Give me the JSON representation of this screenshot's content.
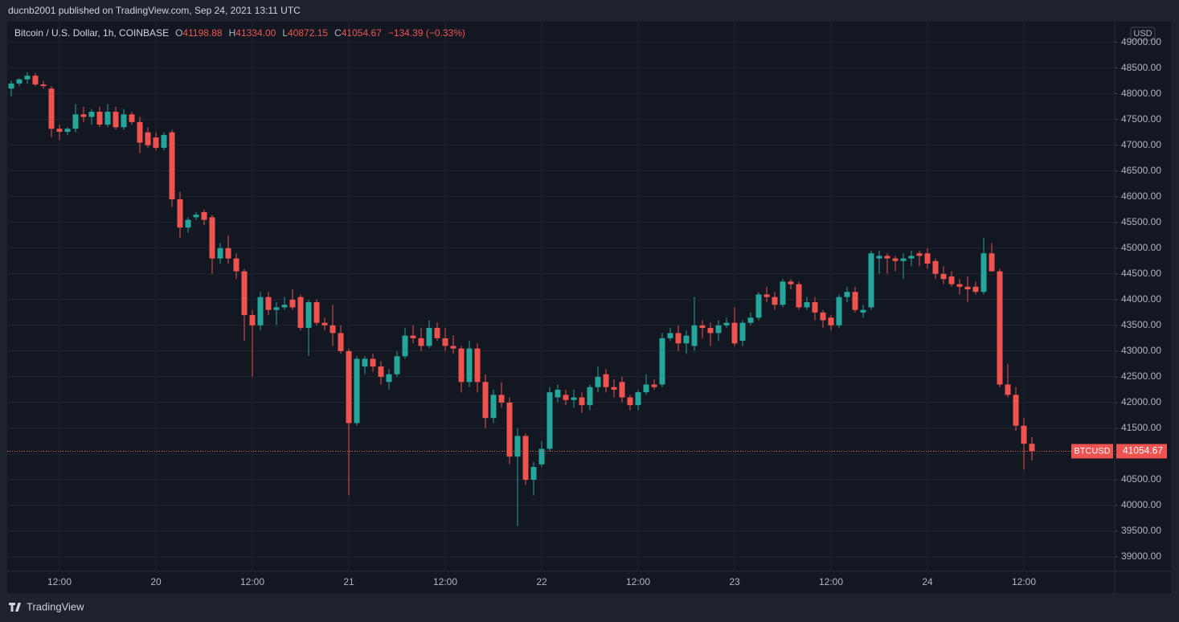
{
  "header": {
    "publisher": "ducnb2001 published on TradingView.com, Sep 24, 2021 13:11 UTC"
  },
  "footer": {
    "brand": "TradingView"
  },
  "chart_data": {
    "type": "candlestick",
    "legend": {
      "symbol": "Bitcoin / U.S. Dollar, 1h, COINBASE",
      "open_key": "O",
      "open": "41198.88",
      "high_key": "H",
      "high": "41334.00",
      "low_key": "L",
      "low": "40872.15",
      "close_key": "C",
      "close": "41054.67",
      "change": "−134.39 (−0.33%)"
    },
    "currency": "USD",
    "price_tag": "BTCUSD",
    "up_color": "#26a69a",
    "down_color": "#ef5350",
    "categories": [
      null,
      null,
      null,
      null,
      null,
      null,
      "12:00",
      null,
      null,
      null,
      null,
      null,
      null,
      null,
      null,
      null,
      null,
      null,
      "20",
      null,
      null,
      null,
      null,
      null,
      null,
      null,
      null,
      null,
      null,
      null,
      "12:00",
      null,
      null,
      null,
      null,
      null,
      null,
      null,
      null,
      null,
      null,
      null,
      "21",
      null,
      null,
      null,
      null,
      null,
      null,
      null,
      null,
      null,
      null,
      null,
      "12:00",
      null,
      null,
      null,
      null,
      null,
      null,
      null,
      null,
      null,
      null,
      null,
      "22",
      null,
      null,
      null,
      null,
      null,
      null,
      null,
      null,
      null,
      null,
      null,
      "12:00",
      null,
      null,
      null,
      null,
      null,
      null,
      null,
      null,
      null,
      null,
      null,
      "23",
      null,
      null,
      null,
      null,
      null,
      null,
      null,
      null,
      null,
      null,
      null,
      "12:00",
      null,
      null,
      null,
      null,
      null,
      null,
      null,
      null,
      null,
      null,
      null,
      "24",
      null,
      null,
      null,
      null,
      null,
      null,
      null,
      null,
      null,
      null,
      null,
      "12:00",
      null
    ],
    "open": [
      48100,
      48200,
      48280,
      48350,
      48180,
      48100,
      47320,
      47260,
      47320,
      47600,
      47550,
      47650,
      47400,
      47650,
      47350,
      47600,
      47450,
      47250,
      47150,
      46950,
      47250,
      45950,
      45400,
      45600,
      45700,
      45600,
      44800,
      45000,
      44800,
      44550,
      43700,
      43500,
      44050,
      43800,
      43850,
      44000,
      44050,
      43450,
      43950,
      43550,
      43500,
      43350,
      43000,
      41600,
      42700,
      42850,
      42700,
      42400,
      42550,
      42900,
      43300,
      43250,
      43100,
      43450,
      43250,
      43100,
      43050,
      42400,
      43050,
      42400,
      41700,
      42150,
      42000,
      40950,
      41350,
      40500,
      40800,
      41100,
      42100,
      42150,
      42050,
      42100,
      41950,
      42300,
      42550,
      42300,
      42400,
      42100,
      41950,
      42200,
      42350,
      42350,
      43250,
      43350,
      43150,
      43100,
      43500,
      43450,
      43350,
      43500,
      43550,
      43200,
      43550,
      43650,
      44100,
      44050,
      43900,
      44350,
      44300,
      43850,
      43950,
      43750,
      43650,
      43500,
      44050,
      44150,
      43750,
      43850,
      44800,
      44850,
      44800,
      44750,
      44800,
      44900,
      44900,
      44750,
      44500,
      44450,
      44300,
      44250,
      44250,
      44150,
      44900,
      44550,
      42350,
      42150,
      41550,
      41198.88
    ],
    "high": [
      48250,
      48300,
      48420,
      48400,
      48250,
      48150,
      47400,
      47350,
      47800,
      47750,
      47700,
      47750,
      47800,
      47750,
      47700,
      47650,
      47550,
      47350,
      47250,
      47250,
      47300,
      46100,
      45600,
      45700,
      45750,
      45650,
      45100,
      45250,
      44900,
      44600,
      43800,
      44150,
      44150,
      43950,
      44050,
      44200,
      44100,
      44000,
      44000,
      43650,
      43900,
      43500,
      43050,
      42900,
      42900,
      42950,
      42800,
      42650,
      43000,
      43450,
      43500,
      43450,
      43600,
      43550,
      43450,
      43300,
      43100,
      43200,
      43150,
      42550,
      42250,
      42400,
      42100,
      41500,
      41400,
      40850,
      41250,
      42300,
      42350,
      42250,
      42250,
      42200,
      42350,
      42700,
      42650,
      42450,
      42500,
      42150,
      42250,
      42550,
      42450,
      43350,
      43450,
      43500,
      43400,
      44050,
      43600,
      43550,
      43600,
      43650,
      43850,
      43600,
      43750,
      44150,
      44250,
      44150,
      44400,
      44400,
      44350,
      44050,
      44050,
      43800,
      43700,
      44100,
      44250,
      44250,
      43900,
      44950,
      44950,
      44900,
      44850,
      44900,
      44950,
      44950,
      45000,
      44800,
      44650,
      44550,
      44400,
      44450,
      44350,
      45200,
      45100,
      44600,
      42750,
      42300,
      41700,
      41334
    ],
    "low": [
      47950,
      48150,
      48200,
      48150,
      48100,
      47150,
      47100,
      47200,
      47250,
      47450,
      47400,
      47350,
      47350,
      47300,
      47300,
      47400,
      46850,
      46950,
      46900,
      46900,
      45800,
      45200,
      45300,
      45550,
      45450,
      44500,
      44700,
      44700,
      44400,
      43200,
      42500,
      43400,
      43700,
      43500,
      43800,
      43800,
      43400,
      42900,
      43500,
      43400,
      43100,
      42950,
      40200,
      41550,
      42550,
      42600,
      42350,
      42250,
      42500,
      42850,
      43150,
      43000,
      43050,
      43200,
      43000,
      42950,
      42200,
      42300,
      42200,
      41500,
      41600,
      41900,
      40800,
      39600,
      40400,
      40200,
      40750,
      41050,
      42000,
      41950,
      41900,
      41800,
      41850,
      42200,
      42200,
      42100,
      42000,
      41850,
      41850,
      42150,
      42250,
      42300,
      43200,
      43000,
      42950,
      43000,
      43250,
      43100,
      43200,
      43450,
      43100,
      43100,
      43500,
      43600,
      43950,
      43800,
      43850,
      44200,
      43800,
      43800,
      43600,
      43450,
      43400,
      43450,
      43950,
      43750,
      43650,
      43800,
      44500,
      44500,
      44550,
      44400,
      44650,
      44650,
      44600,
      44400,
      44300,
      44250,
      44100,
      43950,
      44100,
      44100,
      44550,
      42300,
      42100,
      41450,
      40700,
      40872.15
    ],
    "close": [
      48200,
      48280,
      48350,
      48180,
      48150,
      47320,
      47260,
      47320,
      47600,
      47550,
      47650,
      47400,
      47650,
      47350,
      47600,
      47450,
      47050,
      47000,
      46950,
      47200,
      45950,
      45400,
      45550,
      45650,
      45550,
      44800,
      45000,
      44800,
      44550,
      43700,
      43500,
      44050,
      43800,
      43850,
      43900,
      43850,
      43450,
      43950,
      43550,
      43500,
      43350,
      43000,
      41600,
      42850,
      42850,
      42700,
      42500,
      42550,
      42900,
      43300,
      43250,
      43100,
      43450,
      43250,
      43100,
      43050,
      42400,
      43050,
      42400,
      41700,
      42150,
      42000,
      40950,
      41350,
      40500,
      40750,
      41100,
      42200,
      42250,
      42050,
      42100,
      41950,
      42300,
      42500,
      42300,
      42250,
      42100,
      41950,
      42200,
      42350,
      42300,
      43250,
      43350,
      43150,
      43300,
      43500,
      43450,
      43350,
      43500,
      43550,
      43150,
      43550,
      43650,
      44100,
      44050,
      43900,
      44350,
      44300,
      43850,
      43950,
      43750,
      43600,
      43500,
      44050,
      44150,
      43800,
      43800,
      44900,
      44850,
      44800,
      44750,
      44800,
      44850,
      44850,
      44700,
      44500,
      44400,
      44300,
      44250,
      44200,
      44150,
      44900,
      44550,
      42350,
      42150,
      41550,
      41200,
      41054.67
    ],
    "ylim": [
      38720,
      49400
    ],
    "yticks": [
      {
        "value": 39000,
        "label": "39000.00"
      },
      {
        "value": 39500,
        "label": "39500.00"
      },
      {
        "value": 40000,
        "label": "40000.00"
      },
      {
        "value": 40500,
        "label": "40500.00"
      },
      {
        "value": 41000,
        "label": "41000.00"
      },
      {
        "value": 41500,
        "label": "41500.00"
      },
      {
        "value": 42000,
        "label": "42000.00"
      },
      {
        "value": 42500,
        "label": "42500.00"
      },
      {
        "value": 43000,
        "label": "43000.00"
      },
      {
        "value": 43500,
        "label": "43500.00"
      },
      {
        "value": 44000,
        "label": "44000.00"
      },
      {
        "value": 44500,
        "label": "44500.00"
      },
      {
        "value": 45000,
        "label": "45000.00"
      },
      {
        "value": 45500,
        "label": "45500.00"
      },
      {
        "value": 46000,
        "label": "46000.00"
      },
      {
        "value": 46500,
        "label": "46500.00"
      },
      {
        "value": 47000,
        "label": "47000.00"
      },
      {
        "value": 47500,
        "label": "47500.00"
      },
      {
        "value": 48000,
        "label": "48000.00"
      },
      {
        "value": 48500,
        "label": "48500.00"
      },
      {
        "value": 49000,
        "label": "49000.00"
      }
    ],
    "grid": true
  }
}
